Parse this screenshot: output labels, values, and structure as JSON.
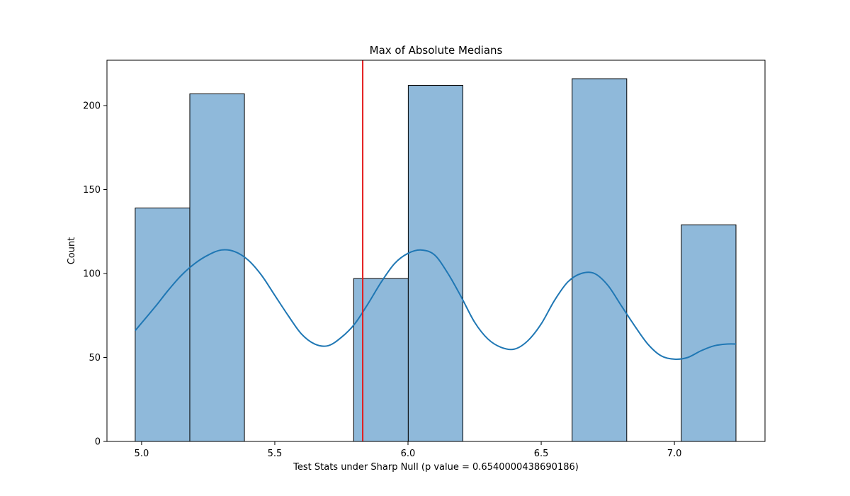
{
  "chart_data": {
    "type": "bar",
    "title": "Max of Absolute Medians",
    "xlabel": "Test Stats under Sharp Null (p value = 0.6540000438690186)",
    "ylabel": "Count",
    "xlim": [
      4.87,
      7.34
    ],
    "ylim": [
      0,
      227
    ],
    "xticks": [
      5.0,
      5.5,
      6.0,
      6.5,
      7.0
    ],
    "xtick_labels": [
      "5.0",
      "5.5",
      "6.0",
      "6.5",
      "7.0"
    ],
    "yticks": [
      0,
      50,
      100,
      150,
      200
    ],
    "ytick_labels": [
      "0",
      "50",
      "100",
      "150",
      "200"
    ],
    "grid": false,
    "bins": [
      {
        "x0": 4.976,
        "x1": 5.181,
        "count": 139
      },
      {
        "x0": 5.181,
        "x1": 5.386,
        "count": 207
      },
      {
        "x0": 5.386,
        "x1": 5.591,
        "count": 0
      },
      {
        "x0": 5.591,
        "x1": 5.796,
        "count": 0
      },
      {
        "x0": 5.796,
        "x1": 6.001,
        "count": 97
      },
      {
        "x0": 6.001,
        "x1": 6.206,
        "count": 212
      },
      {
        "x0": 6.206,
        "x1": 6.411,
        "count": 0
      },
      {
        "x0": 6.411,
        "x1": 6.616,
        "count": 0
      },
      {
        "x0": 6.616,
        "x1": 6.821,
        "count": 216
      },
      {
        "x0": 6.821,
        "x1": 7.026,
        "count": 0
      },
      {
        "x0": 7.026,
        "x1": 7.231,
        "count": 129
      }
    ],
    "kde": {
      "x": [
        4.976,
        5.05,
        5.1,
        5.15,
        5.2,
        5.25,
        5.3,
        5.35,
        5.4,
        5.45,
        5.5,
        5.55,
        5.6,
        5.65,
        5.7,
        5.75,
        5.8,
        5.85,
        5.9,
        5.95,
        6.0,
        6.05,
        6.1,
        6.15,
        6.2,
        6.25,
        6.3,
        6.35,
        6.4,
        6.45,
        6.5,
        6.55,
        6.6,
        6.65,
        6.7,
        6.75,
        6.8,
        6.85,
        6.9,
        6.95,
        7.0,
        7.05,
        7.1,
        7.15,
        7.2,
        7.231
      ],
      "y": [
        66,
        80,
        90,
        99,
        106,
        111,
        114,
        113,
        108,
        99,
        87,
        75,
        64,
        58,
        57,
        62,
        70,
        82,
        95,
        106,
        112,
        114,
        111,
        100,
        86,
        71,
        61,
        56,
        55,
        60,
        70,
        84,
        95,
        100,
        100,
        93,
        81,
        69,
        58,
        51,
        49,
        50,
        54,
        57,
        58,
        58
      ]
    },
    "vline": {
      "x": 5.83,
      "color": "#e41a1c"
    },
    "colors": {
      "bar_fill": "#8fb9da",
      "bar_edge": "#000000",
      "kde": "#1f77b4"
    }
  }
}
